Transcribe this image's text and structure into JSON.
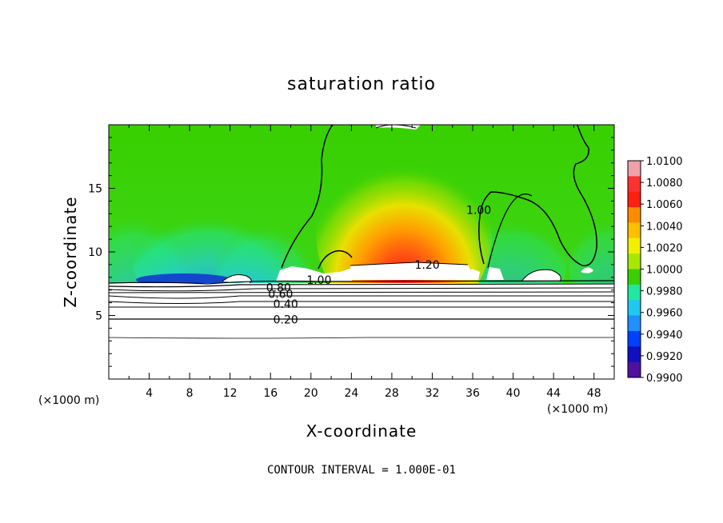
{
  "chart_data": {
    "type": "heatmap",
    "title": "saturation ratio",
    "xlabel": "X-coordinate",
    "ylabel": "Z-coordinate",
    "x_unit_left": "(×1000 m)",
    "x_unit_right": "(×1000 m)",
    "xlim": [
      0,
      50
    ],
    "ylim": [
      0,
      20
    ],
    "x_ticks": [
      4,
      8,
      12,
      16,
      20,
      24,
      28,
      32,
      36,
      40,
      44,
      48
    ],
    "x_tick_labels": [
      "4",
      "8",
      "12",
      "16",
      "20",
      "24",
      "28",
      "32",
      "36",
      "40",
      "44",
      "48"
    ],
    "y_ticks": [
      5,
      10,
      15
    ],
    "y_tick_labels": [
      "5",
      "10",
      "15"
    ],
    "colorbar": {
      "levels": [
        "1.0100",
        "1.0080",
        "1.0060",
        "1.0040",
        "1.0020",
        "1.0000",
        "0.9980",
        "0.9960",
        "0.9940",
        "0.9920",
        "0.9900"
      ],
      "colors": [
        "#f0a0a8",
        "#ff3030",
        "#ff2010",
        "#ff8c00",
        "#ffc000",
        "#f0f000",
        "#a8e800",
        "#38d000",
        "#20e8a0",
        "#20c8f0",
        "#1e90ff",
        "#0040ff",
        "#1010c0",
        "#5010a0"
      ]
    },
    "contour_labels": [
      {
        "text": "1.20",
        "x": 31.5,
        "z": 9.0
      },
      {
        "text": "1.00",
        "x": 36.6,
        "z": 13.3
      },
      {
        "text": "1.00",
        "x": 20.8,
        "z": 7.8
      },
      {
        "text": "0.80",
        "x": 16.8,
        "z": 7.2
      },
      {
        "text": "0.60",
        "x": 17.0,
        "z": 6.7
      },
      {
        "text": "0.40",
        "x": 17.5,
        "z": 5.9
      },
      {
        "text": "0.20",
        "x": 17.5,
        "z": 4.7
      }
    ],
    "footer": "CONTOUR INTERVAL = 1.000E-01"
  }
}
